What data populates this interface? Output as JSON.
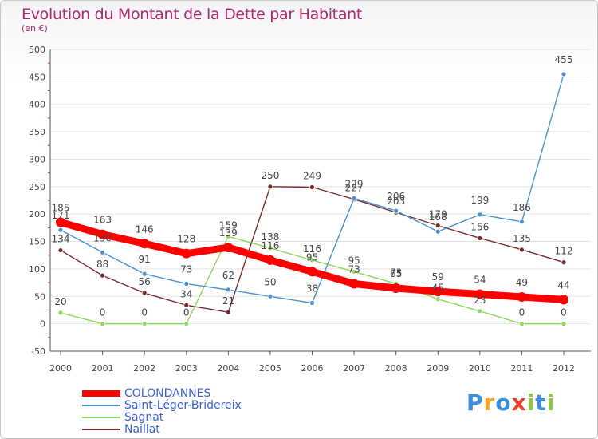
{
  "header": {
    "title": "Evolution du Montant de la Dette par Habitant",
    "subtitle": "(en €)"
  },
  "logo": {
    "letters": [
      "P",
      "r",
      "o",
      "x",
      "i",
      "t",
      "i"
    ],
    "colors": [
      "#3a8fd8",
      "#f5a623",
      "#3a8fd8",
      "#e8402a",
      "#8cc63f",
      "#3a8fd8",
      "#8cc63f"
    ]
  },
  "chart_data": {
    "type": "line",
    "title": "Evolution du Montant de la Dette par Habitant",
    "subtitle": "(en €)",
    "xlabel": "",
    "ylabel": "",
    "x": [
      "2000",
      "2001",
      "2002",
      "2003",
      "2004",
      "2005",
      "2006",
      "2007",
      "2008",
      "2009",
      "2010",
      "2011",
      "2012"
    ],
    "ylim": [
      -50,
      500
    ],
    "yticks": [
      -50,
      0,
      50,
      100,
      150,
      200,
      250,
      300,
      350,
      400,
      450,
      500
    ],
    "grid": true,
    "legend_position": "bottom-left",
    "series": [
      {
        "name": "COLONDANNES",
        "color": "#ff0000",
        "values": [
          185,
          163,
          146,
          128,
          139,
          116,
          95,
          73,
          65,
          59,
          54,
          49,
          44
        ]
      },
      {
        "name": "Saint-Léger-Bridereix",
        "color": "#4a90d0",
        "values": [
          171,
          130,
          91,
          73,
          62,
          50,
          38,
          229,
          206,
          168,
          199,
          186,
          455
        ]
      },
      {
        "name": "Sagnat",
        "color": "#8ed85a",
        "values": [
          20,
          0,
          0,
          0,
          159,
          138,
          116,
          95,
          73,
          45,
          23,
          0,
          0
        ]
      },
      {
        "name": "Naillat",
        "color": "#7a2a2a",
        "values": [
          134,
          88,
          56,
          34,
          21,
          250,
          249,
          227,
          203,
          179,
          156,
          135,
          112
        ]
      }
    ]
  }
}
